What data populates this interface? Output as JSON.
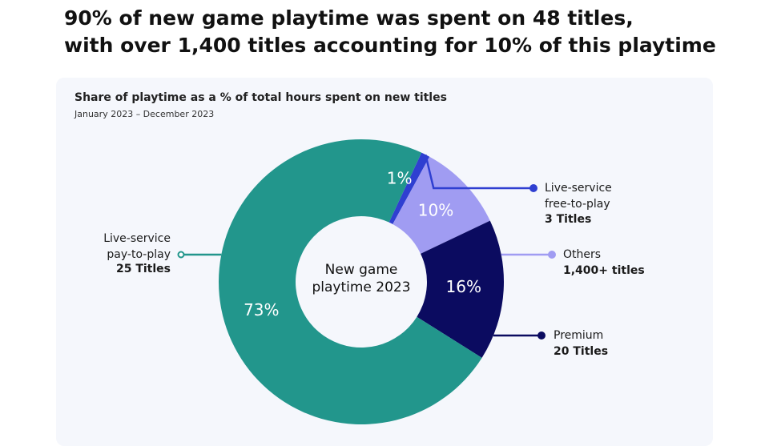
{
  "headline": {
    "line1": "90% of new game playtime was spent on 48 titles,",
    "line2": "with over 1,400 titles accounting for 10% of this playtime"
  },
  "chart_data": {
    "type": "pie",
    "title": "Share of playtime as a % of total hours spent on new titles",
    "subtitle": "January 2023 – December 2023",
    "center_label": [
      "New game",
      "playtime 2023"
    ],
    "unit": "%",
    "slices": [
      {
        "key": "ls_f2p",
        "name_lines": [
          "Live-service",
          "free-to-play"
        ],
        "count": "3 Titles",
        "value": 1,
        "label": "1%",
        "color": "#2f3fd1"
      },
      {
        "key": "others",
        "name_lines": [
          "Others"
        ],
        "count": "1,400+ titles",
        "value": 10,
        "label": "10%",
        "color": "#a09cf2"
      },
      {
        "key": "premium",
        "name_lines": [
          "Premium"
        ],
        "count": "20 Titles",
        "value": 16,
        "label": "16%",
        "color": "#0b0b60"
      },
      {
        "key": "ls_p2p",
        "name_lines": [
          "Live-service",
          "pay-to-play"
        ],
        "count": "25 Titles",
        "value": 73,
        "label": "73%",
        "color": "#22968c"
      }
    ]
  }
}
